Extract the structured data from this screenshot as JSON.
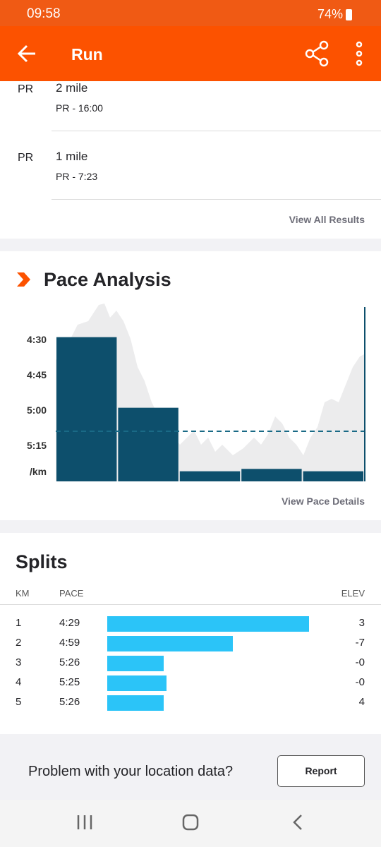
{
  "status_bar": {
    "time": "09:58",
    "battery": "74%"
  },
  "header": {
    "title": "Run"
  },
  "results": {
    "items": [
      {
        "badge": "PR",
        "title": "2 mile",
        "subtitle": "PR - 16:00"
      },
      {
        "badge": "PR",
        "title": "1 mile",
        "subtitle": "PR - 7:23"
      }
    ],
    "link": "View All Results"
  },
  "pace_analysis": {
    "title": "Pace Analysis",
    "yticks": [
      "4:30",
      "4:45",
      "5:00",
      "5:15"
    ],
    "unit": "/km",
    "link": "View Pace Details"
  },
  "splits": {
    "title": "Splits",
    "columns": [
      "KM",
      "PACE",
      "ELEV"
    ],
    "rows": [
      [
        "1",
        "4:29",
        "3"
      ],
      [
        "2",
        "4:59",
        "-7"
      ],
      [
        "3",
        "5:26",
        "-0"
      ],
      [
        "4",
        "5:25",
        "-0"
      ],
      [
        "5",
        "5:26",
        "4"
      ]
    ]
  },
  "location_prompt": {
    "text": "Problem with your location data?",
    "button": "Report"
  }
}
